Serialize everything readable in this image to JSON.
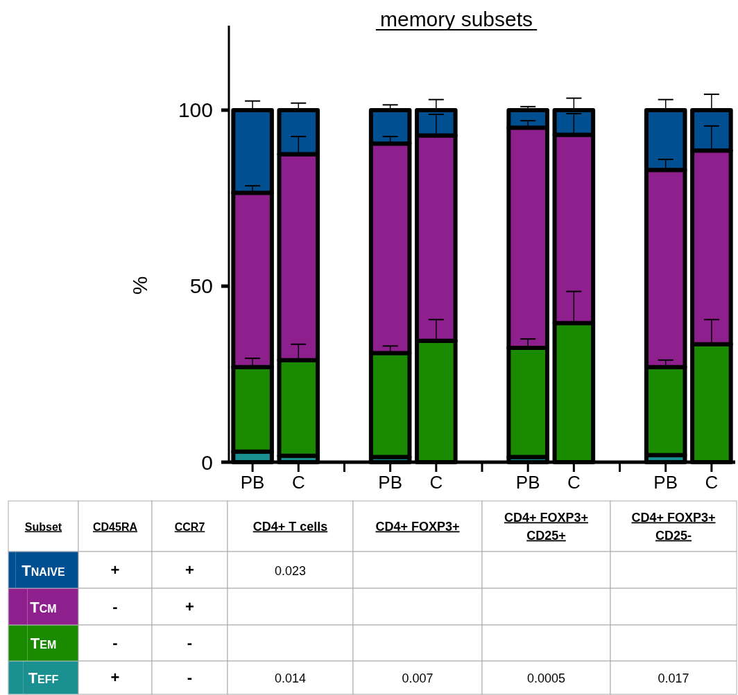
{
  "chart_data": {
    "type": "bar",
    "title": "memory subsets",
    "ylabel": "%",
    "stacked": true,
    "categories": [
      "PB",
      "C",
      null,
      "PB",
      "C",
      null,
      "PB",
      "C",
      null,
      "PB",
      "C"
    ],
    "ylim": [
      0,
      124
    ],
    "yticks": [
      0,
      50,
      100
    ],
    "grid": false,
    "legend": "bottom",
    "series": [
      {
        "name": "TEFF",
        "color": "#1a9090",
        "values": [
          3,
          1.8,
          0,
          1.5,
          null,
          0,
          1.5,
          null,
          0,
          2,
          null
        ],
        "errors": [
          null,
          null,
          null,
          null,
          null,
          null,
          null,
          null,
          null,
          null,
          null
        ]
      },
      {
        "name": "TEM",
        "color": "#1a8a00",
        "values": [
          24,
          27.2,
          0,
          29.5,
          34.5,
          0,
          31,
          39.5,
          0,
          25,
          33.5
        ],
        "errors": [
          [
            27,
            29.5
          ],
          [
            29,
            33.5
          ],
          null,
          [
            31,
            33
          ],
          [
            34.5,
            40.5
          ],
          null,
          [
            32.5,
            35
          ],
          [
            39.5,
            48.5
          ],
          null,
          [
            27,
            29
          ],
          [
            33.5,
            40.5
          ]
        ]
      },
      {
        "name": "TCM",
        "color": "#8e208e",
        "values": [
          49.5,
          58.5,
          0,
          59.5,
          58.3,
          0,
          62.5,
          53.5,
          0,
          56,
          55
        ],
        "errors": [
          [
            76.5,
            78.5
          ],
          [
            87.5,
            92.5
          ],
          null,
          [
            90.5,
            92.5
          ],
          [
            92.8,
            98.8
          ],
          null,
          [
            95,
            97
          ],
          [
            93,
            99
          ],
          null,
          [
            83,
            86
          ],
          [
            88.5,
            95.5
          ]
        ]
      },
      {
        "name": "TNAIVE",
        "color": "#004f91",
        "values": [
          23.5,
          12.5,
          0,
          9.5,
          7.2,
          0,
          5,
          7,
          0,
          17,
          11.5
        ],
        "errors": [
          [
            100,
            102.6
          ],
          [
            100,
            102
          ],
          null,
          [
            100,
            101.5
          ],
          [
            100,
            103
          ],
          null,
          [
            100,
            101
          ],
          [
            100,
            103.4
          ],
          null,
          [
            100,
            103
          ],
          [
            100,
            104.5
          ]
        ]
      }
    ],
    "annotations": [
      "Subset",
      "CD45RA",
      "CCR7",
      "CD4+ T cells",
      "CD4+ FOXP3+",
      "CD4+ FOXP3+ CD25+",
      "CD4+ FOXP3+ CD25-",
      "+",
      "+",
      "0.023",
      null,
      null,
      null,
      "-",
      "+",
      null,
      null,
      null,
      null,
      "-",
      "-",
      null,
      null,
      null,
      null,
      "+",
      "-",
      "0.014",
      "0.007",
      "0.0005",
      "0.017"
    ]
  }
}
